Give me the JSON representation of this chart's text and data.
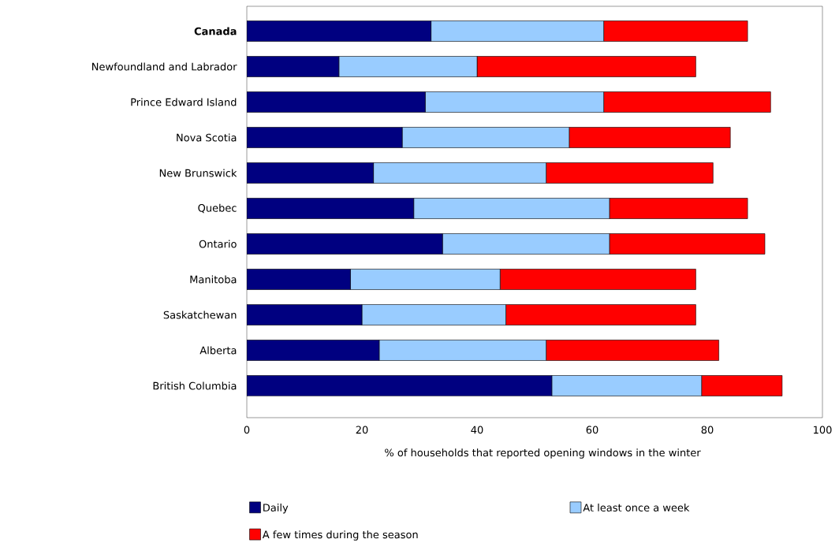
{
  "chart_data": {
    "type": "bar",
    "orientation": "horizontal",
    "stacked": true,
    "categories": [
      "**Canada**",
      "Newfoundland and Labrador",
      "Prince Edward Island",
      "Nova Scotia",
      "New Brunswick",
      "Quebec",
      "Ontario",
      "Manitoba",
      "Saskatchewan",
      "Alberta",
      "British Columbia"
    ],
    "series": [
      {
        "name": "Daily",
        "color": "#000080",
        "values": [
          32,
          16,
          31,
          27,
          22,
          29,
          34,
          18,
          20,
          23,
          53
        ]
      },
      {
        "name": "At least once a week",
        "color": "#99ccff",
        "values": [
          30,
          24,
          31,
          29,
          30,
          34,
          29,
          26,
          25,
          29,
          26
        ]
      },
      {
        "name": "A few times during the season",
        "color": "#ff0000",
        "values": [
          25,
          38,
          29,
          28,
          29,
          24,
          27,
          34,
          33,
          30,
          14
        ]
      }
    ],
    "xlabel": "% of households that reported opening windows in the winter",
    "xlim": [
      0,
      100
    ],
    "xticks": [
      0,
      20,
      40,
      60,
      80,
      100
    ],
    "legend": "bottom",
    "grid": false
  }
}
